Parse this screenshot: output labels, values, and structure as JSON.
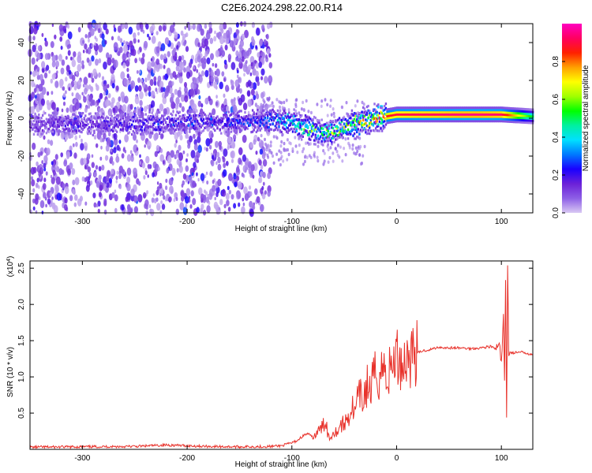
{
  "title": "C2E6.2024.298.22.00.R14",
  "chart_data": [
    {
      "type": "heatmap",
      "xlabel": "Height of straight line (km)",
      "ylabel": "Frequency (Hz)",
      "xlim": [
        -350,
        130
      ],
      "ylim": [
        -50,
        50
      ],
      "xticks": [
        -300,
        -200,
        -100,
        0,
        100
      ],
      "yticks": [
        -40,
        -20,
        0,
        20,
        40
      ],
      "colorbar": {
        "label": "Normalized spectral amplitude",
        "range": [
          0,
          1
        ],
        "ticks": [
          "0.0",
          "0.2",
          "0.4",
          "0.6",
          "0.8"
        ],
        "colors": [
          "#d9c8f3",
          "#8d5fe6",
          "#6b21d8",
          "#1a00ff",
          "#0078ff",
          "#00e0ff",
          "#00f0a0",
          "#00ff00",
          "#a0ff00",
          "#ffff00",
          "#ffa000",
          "#ff2000",
          "#ff0060",
          "#ff00c0"
        ]
      },
      "ridge": {
        "x": [
          -350,
          -250,
          -200,
          -150,
          -120,
          -100,
          -90,
          -80,
          -70,
          -60,
          -50,
          -40,
          -30,
          -20,
          -10,
          0,
          20,
          40,
          60,
          80,
          100,
          130
        ],
        "freq": [
          -3,
          -3,
          -2,
          -2,
          -1,
          -2,
          -4,
          -6,
          -8,
          -7,
          -5,
          -3,
          -2,
          0,
          1,
          2,
          2,
          2,
          2,
          2,
          2,
          1
        ],
        "amplitude": [
          0.15,
          0.2,
          0.25,
          0.22,
          0.3,
          0.45,
          0.5,
          0.5,
          0.55,
          0.55,
          0.6,
          0.65,
          0.7,
          0.8,
          0.85,
          0.9,
          0.92,
          0.93,
          0.95,
          0.95,
          0.93,
          0.5
        ]
      }
    },
    {
      "type": "line",
      "xlabel": "Height of straight line (km)",
      "ylabel": "SNR (10 * v/v)",
      "multiplier_label": "(x10",
      "multiplier_exponent": "4",
      "multiplier_close": ")",
      "xlim": [
        -350,
        130
      ],
      "ylim": [
        0,
        26000
      ],
      "xticks": [
        -300,
        -200,
        -100,
        0,
        100
      ],
      "yticks": [
        0.5,
        1.0,
        1.5,
        2.0,
        2.5
      ],
      "ytick_labels": [
        "0.5",
        "1.0",
        "1.5",
        "2.0",
        "2.5"
      ],
      "color": "#e8312a",
      "series": [
        {
          "x": [
            -350,
            -300,
            -250,
            -220,
            -200,
            -180,
            -150,
            -120,
            -110,
            -100,
            -95,
            -90,
            -85,
            -80,
            -75,
            -70,
            -68,
            -66,
            -64,
            -62,
            -60,
            -58,
            -55,
            -52,
            -50,
            -48,
            -45,
            -42,
            -40,
            -38,
            -35,
            -32,
            -30,
            -28,
            -25,
            -22,
            -20,
            -18,
            -15,
            -12,
            -10,
            -8,
            -5,
            -2,
            0,
            5,
            10,
            15,
            20,
            25,
            30,
            35,
            40,
            50,
            60,
            70,
            80,
            90,
            95,
            98,
            100,
            102,
            103,
            104,
            105,
            106,
            107,
            110,
            120,
            130
          ],
          "y": [
            300,
            350,
            400,
            600,
            500,
            400,
            350,
            400,
            500,
            900,
            1200,
            1800,
            2200,
            1600,
            2400,
            3200,
            4500,
            2500,
            1400,
            2000,
            2800,
            2400,
            3000,
            3600,
            3200,
            4200,
            4800,
            5800,
            4700,
            6500,
            7400,
            6600,
            8200,
            8800,
            7900,
            9800,
            10400,
            9500,
            11300,
            11000,
            10500,
            10200,
            11500,
            12500,
            12800,
            11900,
            12600,
            13200,
            13300,
            13600,
            13700,
            13900,
            14100,
            14000,
            14000,
            13900,
            14000,
            14200,
            13800,
            14300,
            12000,
            18000,
            9000,
            23000,
            4500,
            26000,
            13500,
            13300,
            13400,
            13100
          ]
        }
      ]
    }
  ]
}
